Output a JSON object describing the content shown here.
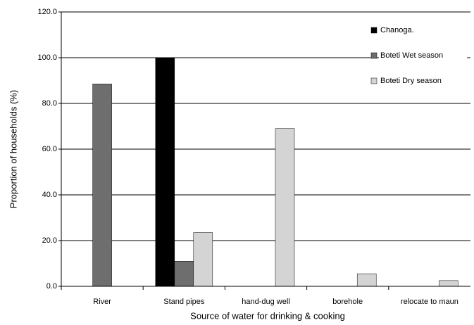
{
  "chart_data": {
    "type": "bar",
    "x_label": "Source of water for drinking & cooking",
    "y_label": "Proportion of households (%)",
    "categories": [
      "River",
      "Stand pipes",
      "hand-dug well",
      "borehole",
      "relocate to maun"
    ],
    "series": [
      {
        "name": "Chanoga.",
        "color": "#000000",
        "values": [
          0,
          100,
          0,
          0,
          0
        ]
      },
      {
        "name": "Boteti Wet season",
        "color": "#6e6e6e",
        "values": [
          88.5,
          11,
          0,
          0,
          0
        ]
      },
      {
        "name": "Boteti Dry season",
        "color": "#d4d4d4",
        "values": [
          0,
          23.5,
          69,
          5.5,
          2.5
        ]
      }
    ],
    "ylim": [
      0,
      120
    ],
    "yticks": [
      {
        "value": 0,
        "label": "0.0"
      },
      {
        "value": 20,
        "label": "20.0"
      },
      {
        "value": 40,
        "label": "40.0"
      },
      {
        "value": 60,
        "label": "60.0"
      },
      {
        "value": 80,
        "label": "80.0"
      },
      {
        "value": 100,
        "label": "100.0"
      },
      {
        "value": 120,
        "label": "120.0"
      }
    ],
    "grid": true,
    "legend": "upper right"
  }
}
